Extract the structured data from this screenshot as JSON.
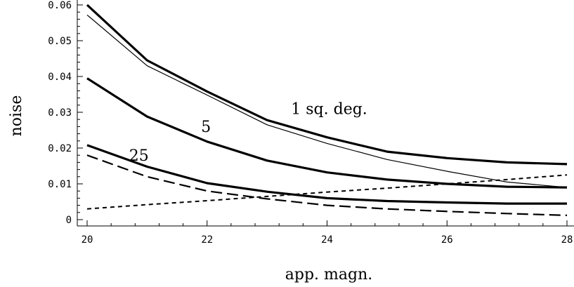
{
  "chart_data": {
    "type": "line",
    "title": "",
    "xlabel": "app. magn.",
    "ylabel": "noise",
    "xlim": [
      19.8,
      28.2
    ],
    "ylim": [
      -0.001,
      0.062
    ],
    "xticks": [
      20,
      22,
      24,
      26,
      28
    ],
    "xtick_labels": [
      "20",
      "22",
      "24",
      "26",
      "28"
    ],
    "yticks": [
      0,
      0.01,
      0.02,
      0.03,
      0.04,
      0.05,
      0.06
    ],
    "ytick_labels": [
      "0",
      "0.01",
      "0.02",
      "0.03",
      "0.04",
      "0.05",
      "0.06"
    ],
    "grid": false,
    "legend": "none",
    "x": [
      20,
      21,
      22,
      23,
      24,
      25,
      26,
      27,
      28
    ],
    "series": [
      {
        "style": "thick",
        "values": [
          0.06,
          0.0445,
          0.0358,
          0.0278,
          0.023,
          0.019,
          0.0172,
          0.016,
          0.0155
        ]
      },
      {
        "style": "thin",
        "values": [
          0.0572,
          0.043,
          0.0348,
          0.0265,
          0.0213,
          0.0168,
          0.0135,
          0.0105,
          0.009
        ]
      },
      {
        "style": "thick",
        "values": [
          0.0395,
          0.0288,
          0.0218,
          0.0165,
          0.0132,
          0.0112,
          0.01,
          0.0092,
          0.009
        ]
      },
      {
        "style": "thick",
        "values": [
          0.0208,
          0.0148,
          0.0102,
          0.0078,
          0.006,
          0.0052,
          0.0048,
          0.0045,
          0.0045
        ]
      },
      {
        "style": "long-dash",
        "values": [
          0.018,
          0.012,
          0.008,
          0.0058,
          0.004,
          0.003,
          0.0023,
          0.0017,
          0.0012
        ]
      },
      {
        "style": "short-dash",
        "values": [
          0.003,
          0.0042,
          0.0053,
          0.0065,
          0.0077,
          0.0088,
          0.01,
          0.0112,
          0.0125
        ]
      }
    ],
    "annotations": [
      {
        "text": "1 sq. deg.",
        "x": 23.4,
        "y": 0.0295
      },
      {
        "text": "5",
        "x": 21.9,
        "y": 0.0245
      },
      {
        "text": "25",
        "x": 20.7,
        "y": 0.0165
      }
    ]
  }
}
